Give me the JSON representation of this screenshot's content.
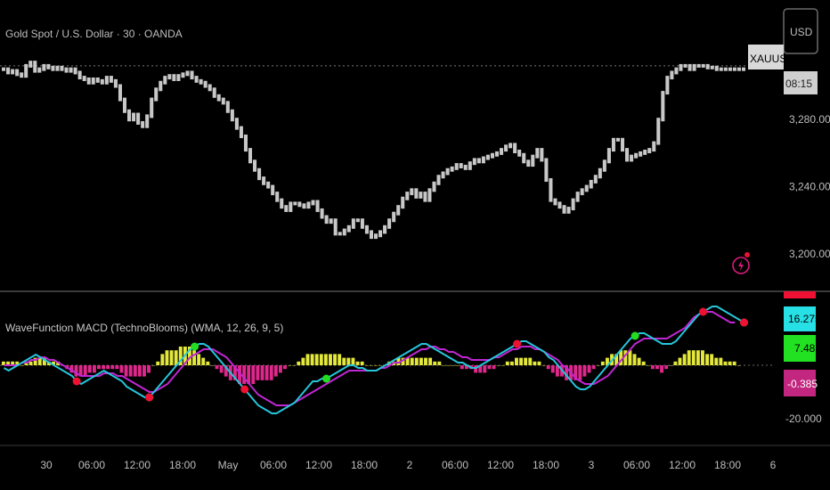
{
  "symbol_title": "Gold Spot / U.S. Dollar · 30 · OANDA",
  "currency_button": "USD",
  "ticker_badge": "XAUUSD",
  "countdown": "08:15",
  "indicator_legend": "WaveFunction MACD (TechnoBlooms) (WMA, 12, 26, 9, 5)",
  "colors": {
    "background": "#000000",
    "price_bars": "#c8c8c8",
    "macd_line": "#26c6da",
    "signal_line": "#c026d3",
    "hist_positive": "#e4e83a",
    "hist_negative": "#e0288c",
    "buy_dot": "#22dd22",
    "sell_dot": "#ee1133"
  },
  "chart_data": [
    {
      "type": "line",
      "title": "Gold Spot / U.S. Dollar · 30 · OANDA",
      "y_ticks": [
        "3,280.000",
        "3,240.000",
        "3,200.000"
      ],
      "ylim": [
        3192,
        3330
      ],
      "x": [
        0,
        1,
        2,
        3,
        4,
        5,
        6,
        7,
        8,
        9,
        10,
        11,
        12,
        13,
        14,
        15,
        16,
        17,
        18,
        19,
        20,
        21,
        22,
        23,
        24,
        25,
        26,
        27,
        28,
        29,
        30,
        31,
        32,
        33,
        34,
        35,
        36,
        37,
        38,
        39,
        40,
        41,
        42,
        43,
        44,
        45,
        46,
        47,
        48,
        49,
        50,
        51,
        52,
        53,
        54,
        55,
        56,
        57,
        58,
        59,
        60,
        61,
        62,
        63,
        64,
        65,
        66,
        67,
        68,
        69,
        70,
        71,
        72,
        73,
        74,
        75,
        76,
        77,
        78,
        79,
        80,
        81,
        82,
        83,
        84,
        85,
        86,
        87,
        88,
        89,
        90,
        91,
        92,
        93,
        94,
        95,
        96,
        97,
        98,
        99,
        100,
        101,
        102,
        103,
        104,
        105,
        106,
        107,
        108,
        109,
        110,
        111,
        112,
        113,
        114,
        115,
        116,
        117,
        118,
        119,
        120,
        121,
        122,
        123,
        124,
        125,
        126,
        127,
        128,
        129,
        130,
        131,
        132,
        133,
        134,
        135,
        136,
        137,
        138,
        139,
        140,
        141,
        142,
        143,
        144,
        145,
        146,
        147,
        148,
        149,
        150,
        151,
        152,
        153,
        154,
        155,
        156,
        157,
        158,
        159,
        160,
        161,
        162,
        163,
        164,
        165
      ],
      "values": [
        3310,
        3308,
        3309,
        3307,
        3306,
        3312,
        3314,
        3309,
        3310,
        3312,
        3311,
        3310,
        3311,
        3310,
        3309,
        3310,
        3308,
        3305,
        3304,
        3302,
        3304,
        3303,
        3302,
        3305,
        3303,
        3300,
        3292,
        3285,
        3280,
        3283,
        3278,
        3276,
        3282,
        3292,
        3298,
        3302,
        3305,
        3306,
        3304,
        3306,
        3307,
        3308,
        3305,
        3303,
        3302,
        3300,
        3298,
        3294,
        3292,
        3290,
        3285,
        3280,
        3275,
        3270,
        3262,
        3255,
        3250,
        3245,
        3242,
        3240,
        3236,
        3232,
        3228,
        3226,
        3230,
        3230,
        3229,
        3228,
        3230,
        3231,
        3226,
        3222,
        3219,
        3220,
        3212,
        3212,
        3214,
        3216,
        3220,
        3220,
        3216,
        3213,
        3210,
        3211,
        3213,
        3216,
        3220,
        3224,
        3228,
        3233,
        3236,
        3238,
        3234,
        3236,
        3232,
        3238,
        3242,
        3246,
        3248,
        3250,
        3251,
        3253,
        3252,
        3251,
        3254,
        3256,
        3255,
        3257,
        3258,
        3259,
        3260,
        3262,
        3264,
        3265,
        3261,
        3259,
        3255,
        3253,
        3258,
        3262,
        3256,
        3244,
        3232,
        3230,
        3228,
        3225,
        3227,
        3232,
        3236,
        3238,
        3240,
        3243,
        3246,
        3250,
        3255,
        3262,
        3268,
        3268,
        3262,
        3256,
        3258,
        3259,
        3260,
        3261,
        3262,
        3266,
        3280,
        3296,
        3305,
        3308,
        3310,
        3312,
        3312,
        3310,
        3312,
        3312,
        3312,
        3311,
        3311,
        3310,
        3310,
        3310,
        3310,
        3310,
        3310,
        3310
      ],
      "reference_line": 3312
    },
    {
      "type": "line",
      "title": "WaveFunction MACD (TechnoBlooms) (WMA, 12, 26, 9, 5)",
      "y_ticks": [
        "-20.000"
      ],
      "ylim": [
        -24,
        24
      ],
      "value_badges": [
        "16.275",
        "7.483",
        "-0.385"
      ],
      "series": [
        {
          "name": "MACD",
          "values": [
            -1,
            -2,
            -1,
            0,
            1,
            2,
            3,
            4,
            3,
            2,
            1,
            0,
            -1,
            -2,
            -3,
            -4,
            -6,
            -7,
            -6,
            -5,
            -4,
            -3,
            -2,
            -3,
            -4,
            -5,
            -6,
            -8,
            -9,
            -10,
            -11,
            -12,
            -12,
            -10,
            -8,
            -6,
            -4,
            -2,
            0,
            2,
            4,
            6,
            7,
            8,
            8,
            7,
            5,
            3,
            1,
            -1,
            -3,
            -5,
            -7,
            -9,
            -11,
            -13,
            -15,
            -16,
            -17,
            -18,
            -18,
            -17,
            -16,
            -15,
            -14,
            -12,
            -10,
            -8,
            -6,
            -6,
            -5,
            -5,
            -4,
            -3,
            -2,
            -1,
            0,
            0,
            -1,
            -1,
            -2,
            -2,
            -2,
            -1,
            0,
            1,
            2,
            3,
            4,
            5,
            6,
            7,
            8,
            8,
            7,
            6,
            5,
            4,
            3,
            2,
            1,
            1,
            0,
            -1,
            -1,
            0,
            1,
            2,
            3,
            4,
            5,
            6,
            7,
            8,
            9,
            9,
            8,
            7,
            6,
            5,
            3,
            2,
            0,
            -2,
            -4,
            -6,
            -8,
            -9,
            -9,
            -8,
            -6,
            -4,
            -2,
            0,
            2,
            4,
            6,
            8,
            10,
            11,
            12,
            12,
            11,
            10,
            9,
            8,
            8,
            8,
            9,
            11,
            13,
            15,
            17,
            19,
            20,
            21,
            22,
            22,
            21,
            20,
            19,
            18,
            17,
            16
          ],
          "color": "#26c6da"
        },
        {
          "name": "Signal",
          "values": [
            0,
            0,
            0,
            0,
            1,
            1,
            2,
            2,
            3,
            3,
            2,
            2,
            1,
            0,
            -1,
            -2,
            -3,
            -4,
            -4,
            -4,
            -4,
            -4,
            -3,
            -3,
            -3,
            -4,
            -4,
            -5,
            -6,
            -7,
            -8,
            -9,
            -10,
            -10,
            -9,
            -8,
            -7,
            -5,
            -3,
            -1,
            1,
            3,
            4,
            5,
            6,
            6,
            6,
            5,
            4,
            3,
            1,
            -1,
            -3,
            -5,
            -7,
            -9,
            -11,
            -12,
            -13,
            -14,
            -15,
            -15,
            -15,
            -15,
            -14,
            -13,
            -12,
            -11,
            -10,
            -9,
            -8,
            -7,
            -6,
            -5,
            -4,
            -3,
            -2,
            -2,
            -2,
            -2,
            -2,
            -2,
            -2,
            -1,
            -1,
            0,
            1,
            1,
            2,
            3,
            4,
            5,
            6,
            6,
            7,
            7,
            6,
            6,
            5,
            5,
            4,
            3,
            3,
            2,
            2,
            2,
            2,
            2,
            3,
            3,
            4,
            5,
            6,
            6,
            7,
            7,
            7,
            6,
            6,
            5,
            4,
            3,
            2,
            0,
            -1,
            -3,
            -5,
            -6,
            -7,
            -7,
            -7,
            -6,
            -5,
            -4,
            -2,
            0,
            2,
            4,
            6,
            8,
            9,
            10,
            10,
            10,
            10,
            10,
            10,
            11,
            12,
            13,
            14,
            16,
            18,
            19,
            20,
            20,
            20,
            19,
            18,
            17,
            16,
            16
          ],
          "color": "#c026d3"
        },
        {
          "name": "Histogram",
          "values": [
            1,
            1,
            1,
            1,
            0,
            1,
            1,
            2,
            2,
            2,
            1,
            1,
            1,
            0,
            -1,
            -2,
            -3,
            -3,
            -3,
            -2,
            -2,
            -1,
            -1,
            -1,
            -1,
            -1,
            -2,
            -3,
            -3,
            -3,
            -3,
            -3,
            -2,
            0,
            1,
            3,
            4,
            4,
            4,
            5,
            5,
            5,
            4,
            3,
            2,
            1,
            0,
            -1,
            -2,
            -3,
            -4,
            -4,
            -5,
            -5,
            -5,
            -5,
            -4,
            -4,
            -4,
            -4,
            -3,
            -2,
            -1,
            0,
            0,
            1,
            2,
            3,
            3,
            3,
            3,
            3,
            3,
            3,
            3,
            2,
            2,
            2,
            1,
            1,
            0,
            0,
            0,
            0,
            0,
            1,
            1,
            2,
            2,
            2,
            2,
            2,
            2,
            2,
            2,
            1,
            1,
            0,
            0,
            0,
            0,
            -1,
            -1,
            -1,
            -2,
            -2,
            -2,
            -1,
            -1,
            0,
            0,
            1,
            1,
            2,
            2,
            2,
            2,
            1,
            1,
            0,
            -1,
            -2,
            -3,
            -3,
            -4,
            -4,
            -4,
            -4,
            -3,
            -2,
            -1,
            0,
            1,
            2,
            3,
            3,
            4,
            4,
            4,
            3,
            2,
            1,
            0,
            -1,
            -1,
            -2,
            -1,
            0,
            1,
            2,
            3,
            4,
            4,
            4,
            4,
            3,
            3,
            2,
            2,
            1,
            1,
            1,
            0
          ]
        }
      ],
      "signal_dots": {
        "buy": [
          32,
          42,
          71,
          139,
          166
        ],
        "sell": [
          16,
          32,
          53,
          113,
          154,
          171
        ]
      }
    }
  ],
  "x_axis_labels": [
    "30",
    "06:00",
    "12:00",
    "18:00",
    "May",
    "06:00",
    "12:00",
    "18:00",
    "2",
    "06:00",
    "12:00",
    "18:00",
    "3",
    "06:00",
    "12:00",
    "18:00",
    "6"
  ]
}
